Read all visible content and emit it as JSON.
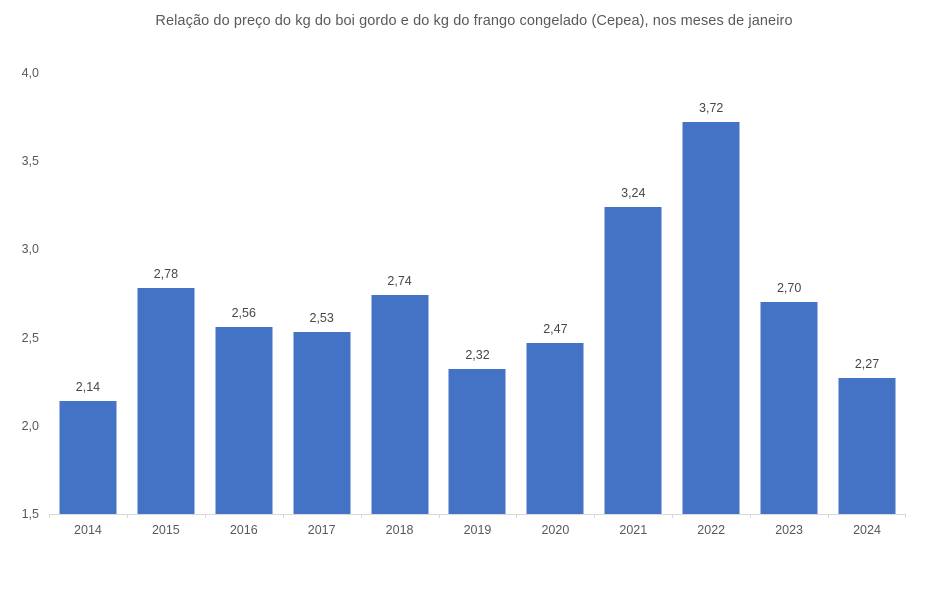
{
  "chart_data": {
    "type": "bar",
    "title": "Relação do preço do kg do boi gordo e do kg do frango congelado (Cepea), nos meses de janeiro",
    "categories": [
      "2014",
      "2015",
      "2016",
      "2017",
      "2018",
      "2019",
      "2020",
      "2021",
      "2022",
      "2023",
      "2024"
    ],
    "values": [
      2.14,
      2.78,
      2.56,
      2.53,
      2.74,
      2.32,
      2.47,
      3.24,
      3.72,
      2.7,
      2.27
    ],
    "value_labels": [
      "2,14",
      "2,78",
      "2,56",
      "2,53",
      "2,74",
      "2,32",
      "2,47",
      "3,24",
      "3,72",
      "2,70",
      "2,27"
    ],
    "xlabel": "",
    "ylabel": "",
    "ylim": [
      1.5,
      4.0
    ],
    "ytick_values": [
      1.5,
      2.0,
      2.5,
      3.0,
      3.5,
      4.0
    ],
    "ytick_labels": [
      "1,5",
      "2,0",
      "2,5",
      "3,0",
      "3,5",
      "4,0"
    ],
    "grid": false,
    "legend_position": "none",
    "decimal_separator": ",",
    "colors": {
      "bar": "#4472c4",
      "axis_line": "#d9d9d9",
      "tick_label": "#595959",
      "data_label": "#474747",
      "title": "#595959",
      "background": "#ffffff"
    }
  }
}
